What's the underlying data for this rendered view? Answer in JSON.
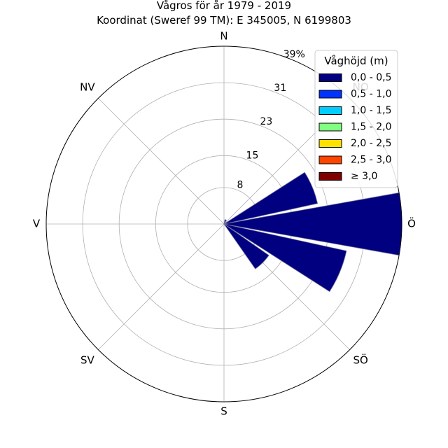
{
  "chart_data": {
    "type": "windrose",
    "title": "Vågros för år 1979 - 2019",
    "subtitle": "Koordinat (Sweref 99 TM): E 345005, N 6199803",
    "directions": [
      "N",
      "NO",
      "Ö",
      "SÖ",
      "S",
      "SV",
      "V",
      "NV"
    ],
    "radial_ticks": [
      "8",
      "15",
      "23",
      "31",
      "39%"
    ],
    "radial_max": 39,
    "legend": {
      "title": "Våghöjd (m)",
      "entries": [
        {
          "label": "0,0 - 0,5",
          "color": "#000080"
        },
        {
          "label": "0,5 - 1,0",
          "color": "#0033ff"
        },
        {
          "label": "1,0 - 1,5",
          "color": "#00ccff"
        },
        {
          "label": "1,5 - 2,0",
          "color": "#80ff80"
        },
        {
          "label": "2,0 - 2,5",
          "color": "#ffe000"
        },
        {
          "label": "2,5 - 3,0",
          "color": "#ff4400"
        },
        {
          "label": "≥ 3,0",
          "color": "#800000"
        }
      ]
    },
    "sectors": [
      {
        "direction_deg": 22.5,
        "value": 1.0
      },
      {
        "direction_deg": 67.5,
        "value": 21.0
      },
      {
        "direction_deg": 90,
        "value": 39.0
      },
      {
        "direction_deg": 112.5,
        "value": 27.5
      },
      {
        "direction_deg": 135,
        "value": 12.0
      }
    ]
  }
}
